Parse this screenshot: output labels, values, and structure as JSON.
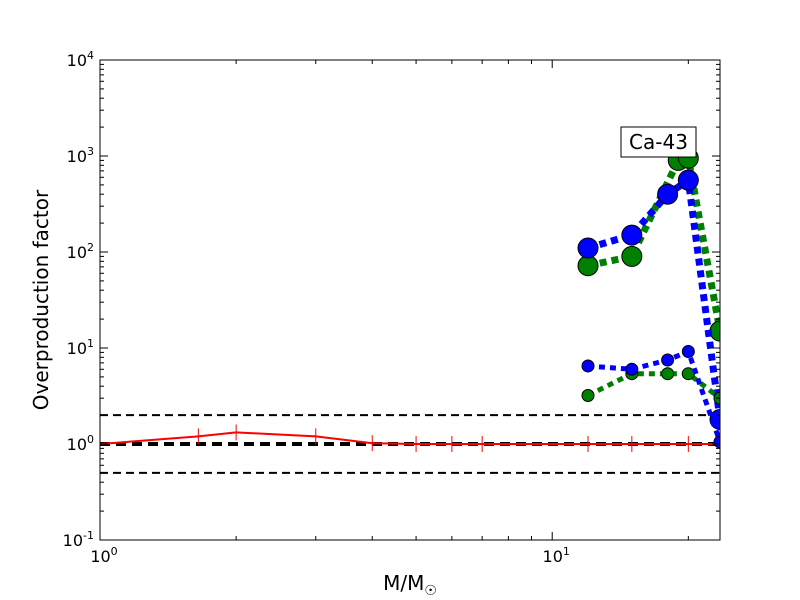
{
  "chart_data": {
    "type": "line",
    "xscale": "log",
    "yscale": "log",
    "xlim": [
      1,
      23.5
    ],
    "ylim": [
      0.1,
      10000
    ],
    "xlabel": {
      "base": "M/M",
      "subscript": "☉"
    },
    "ylabel": "Overproduction factor",
    "annotation": "Ca-43",
    "x_ticks": [
      {
        "base": "10",
        "exp": "0",
        "value": 1
      },
      {
        "base": "10",
        "exp": "1",
        "value": 10
      }
    ],
    "y_ticks": [
      {
        "base": "10",
        "exp": "-1",
        "value": 0.1
      },
      {
        "base": "10",
        "exp": "0",
        "value": 1
      },
      {
        "base": "10",
        "exp": "1",
        "value": 10
      },
      {
        "base": "10",
        "exp": "2",
        "value": 100
      },
      {
        "base": "10",
        "exp": "3",
        "value": 1000
      },
      {
        "base": "10",
        "exp": "4",
        "value": 10000
      }
    ],
    "reference_lines": [
      {
        "y": 2,
        "style": "dashed-thin",
        "color": "#000000"
      },
      {
        "y": 1,
        "style": "dashed-thick",
        "color": "#000000"
      },
      {
        "y": 0.5,
        "style": "dashed-thin",
        "color": "#000000"
      }
    ],
    "series": [
      {
        "style": "solid-red",
        "color": "#ff0000",
        "marker": "tick",
        "x": [
          1,
          1.65,
          2,
          3,
          4,
          5,
          6,
          7,
          12,
          15,
          20,
          23.5
        ],
        "y": [
          1.0,
          1.2,
          1.32,
          1.2,
          1.02,
          1.0,
          1.0,
          1.0,
          1.0,
          1.0,
          1.0,
          1.0
        ]
      },
      {
        "style": "dotted-green",
        "color": "#008000",
        "marker": "large-circle",
        "x": [
          12,
          15,
          19,
          20,
          23.5
        ],
        "y": [
          72,
          90,
          900,
          950,
          15
        ]
      },
      {
        "style": "dotted-blue",
        "color": "#0000ff",
        "marker": "large-circle",
        "x": [
          12,
          15,
          18,
          20,
          23.5
        ],
        "y": [
          110,
          150,
          400,
          560,
          1.8
        ]
      },
      {
        "style": "dotted-green",
        "color": "#008000",
        "marker": "small-circle",
        "x": [
          12,
          15,
          18,
          20,
          23.5
        ],
        "y": [
          3.2,
          5.4,
          5.4,
          5.4,
          3.0
        ]
      },
      {
        "style": "dotted-blue",
        "color": "#0000ff",
        "marker": "small-circle",
        "x": [
          12,
          15,
          18,
          20,
          23.5
        ],
        "y": [
          6.5,
          6.0,
          7.5,
          9.2,
          1.05
        ]
      }
    ]
  }
}
